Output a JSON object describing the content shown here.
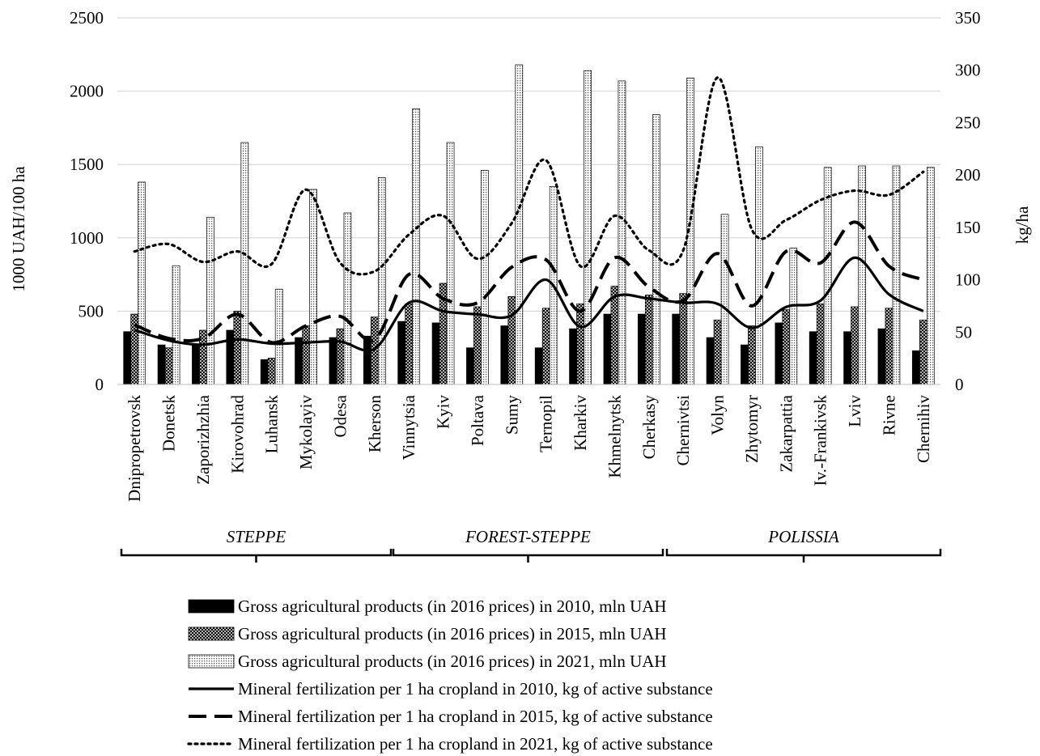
{
  "chart_data": {
    "type": "bar",
    "categories": [
      "Dnipropetrovsk",
      "Donetsk",
      "Zaporizhzhia",
      "Kirovohrad",
      "Luhansk",
      "Mykolayiv",
      "Odesa",
      "Kherson",
      "Vinnytsia",
      "Kyiv",
      "Poltava",
      "Sumy",
      "Ternopil",
      "Kharkiv",
      "Khmelnytsk",
      "Cherkasy",
      "Chernivtsi",
      "Volyn",
      "Zhytomyr",
      "Zakarpattia",
      "Iv.-Frankivsk",
      "Lviv",
      "Rivne",
      "Chernihiv"
    ],
    "groups": [
      {
        "label": "STEPPE",
        "from": 0,
        "to": 7
      },
      {
        "label": "FOREST-STEPPE",
        "from": 8,
        "to": 15
      },
      {
        "label": "POLISSIA",
        "from": 16,
        "to": 23
      }
    ],
    "y_left": {
      "label": "1000 UAH/100 ha",
      "min": 0,
      "max": 2500,
      "ticks": [
        0,
        500,
        1000,
        1500,
        2000,
        2500
      ]
    },
    "y_right": {
      "label": "kg/ha",
      "min": 0,
      "max": 350,
      "ticks": [
        0,
        50,
        100,
        150,
        200,
        250,
        300,
        350
      ]
    },
    "gridlines": true,
    "legend_position": "bottom",
    "bar_series": [
      {
        "name": "Gross agricultural products (in 2016 prices) in 2010, mln UAH",
        "axis": "left",
        "values": [
          360,
          270,
          270,
          370,
          170,
          320,
          320,
          330,
          430,
          420,
          250,
          400,
          250,
          380,
          480,
          480,
          480,
          320,
          270,
          420,
          360,
          360,
          380,
          230
        ]
      },
      {
        "name": "Gross agricultural products (in 2016 prices) in 2015, mln UAH",
        "axis": "left",
        "values": [
          480,
          250,
          370,
          500,
          180,
          400,
          380,
          460,
          550,
          690,
          530,
          600,
          520,
          550,
          670,
          610,
          620,
          440,
          400,
          510,
          550,
          530,
          520,
          440
        ]
      },
      {
        "name": "Gross agricultural products (in 2016 prices) in 2021, mln UAH",
        "axis": "left",
        "values": [
          1380,
          810,
          1140,
          1650,
          650,
          1330,
          1170,
          1410,
          1880,
          1650,
          1460,
          2180,
          1350,
          2140,
          2070,
          1840,
          2090,
          1160,
          1620,
          930,
          1480,
          1490,
          1490,
          1480
        ]
      }
    ],
    "line_series": [
      {
        "name": "Mineral fertilization per 1 ha cropland in 2010, kg of active substance",
        "axis": "right",
        "style": "solid",
        "values": [
          52,
          42,
          38,
          43,
          39,
          40,
          41,
          34,
          78,
          70,
          67,
          66,
          100,
          55,
          84,
          82,
          78,
          77,
          54,
          74,
          80,
          121,
          86,
          70
        ]
      },
      {
        "name": "Mineral fertilization per 1 ha cropland in 2015, kg of active substance",
        "axis": "right",
        "style": "dashed",
        "values": [
          57,
          44,
          44,
          67,
          40,
          56,
          65,
          43,
          105,
          82,
          78,
          112,
          119,
          70,
          121,
          93,
          80,
          125,
          75,
          127,
          116,
          155,
          113,
          100
        ]
      },
      {
        "name": "Mineral fertilization per 1 ha cropland in 2021, kg of active substance",
        "axis": "right",
        "style": "dotted",
        "values": [
          127,
          134,
          117,
          127,
          115,
          186,
          116,
          108,
          143,
          161,
          120,
          154,
          214,
          113,
          161,
          128,
          128,
          293,
          148,
          157,
          176,
          185,
          181,
          203
        ]
      }
    ]
  }
}
